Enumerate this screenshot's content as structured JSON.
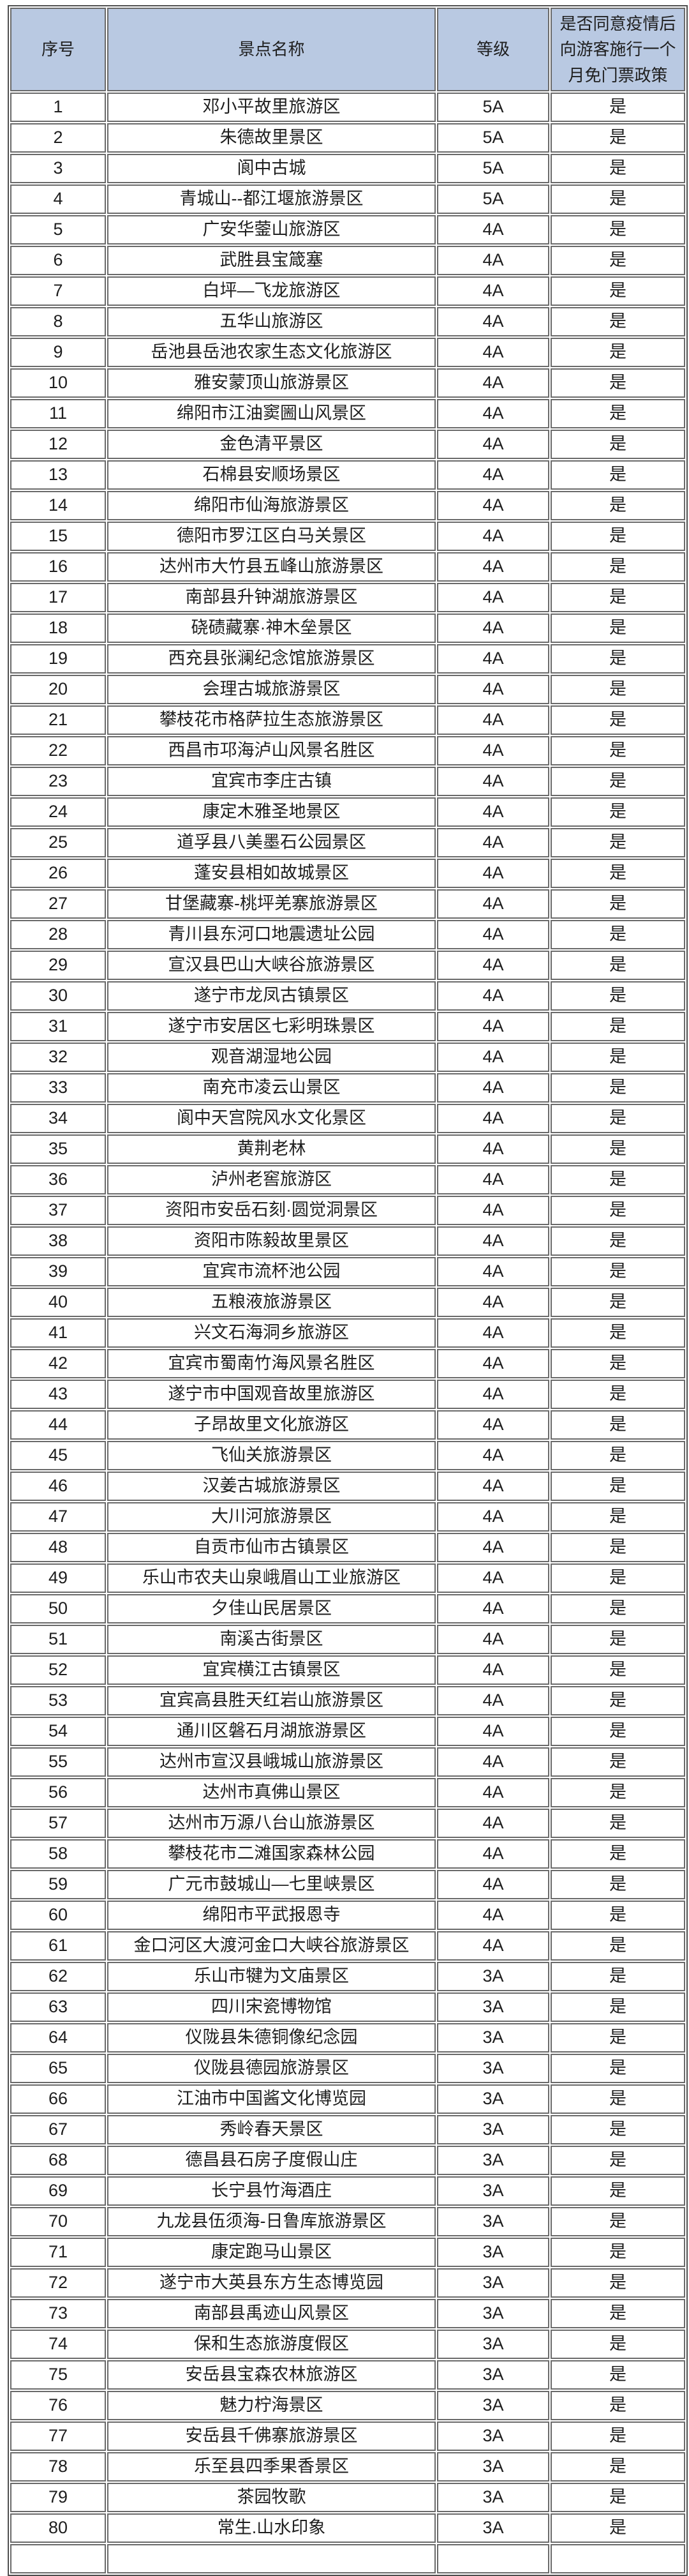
{
  "colors": {
    "header_bg": "#b9c9e2",
    "border": "#6a6a6a",
    "outer_border": "#4f4f4f",
    "text": "#1e1e1e"
  },
  "table": {
    "columns": {
      "serial": "序号",
      "name": "景点名称",
      "grade": "等级",
      "policy": "是否同意疫情后\n向游客施行一个\n月免门票政策"
    },
    "rows": [
      [
        "1",
        "邓小平故里旅游区",
        "5A",
        "是"
      ],
      [
        "2",
        "朱德故里景区",
        "5A",
        "是"
      ],
      [
        "3",
        "阆中古城",
        "5A",
        "是"
      ],
      [
        "4",
        "青城山--都江堰旅游景区",
        "5A",
        "是"
      ],
      [
        "5",
        "广安华蓥山旅游区",
        "4A",
        "是"
      ],
      [
        "6",
        "武胜县宝箴塞",
        "4A",
        "是"
      ],
      [
        "7",
        "白坪—飞龙旅游区",
        "4A",
        "是"
      ],
      [
        "8",
        "五华山旅游区",
        "4A",
        "是"
      ],
      [
        "9",
        "岳池县岳池农家生态文化旅游区",
        "4A",
        "是"
      ],
      [
        "10",
        "雅安蒙顶山旅游景区",
        "4A",
        "是"
      ],
      [
        "11",
        "绵阳市江油窦圌山风景区",
        "4A",
        "是"
      ],
      [
        "12",
        "金色清平景区",
        "4A",
        "是"
      ],
      [
        "13",
        "石棉县安顺场景区",
        "4A",
        "是"
      ],
      [
        "14",
        "绵阳市仙海旅游景区",
        "4A",
        "是"
      ],
      [
        "15",
        "德阳市罗江区白马关景区",
        "4A",
        "是"
      ],
      [
        "16",
        "达州市大竹县五峰山旅游景区",
        "4A",
        "是"
      ],
      [
        "17",
        "南部县升钟湖旅游景区",
        "4A",
        "是"
      ],
      [
        "18",
        "硗碛藏寨·神木垒景区",
        "4A",
        "是"
      ],
      [
        "19",
        "西充县张澜纪念馆旅游景区",
        "4A",
        "是"
      ],
      [
        "20",
        "会理古城旅游景区",
        "4A",
        "是"
      ],
      [
        "21",
        "攀枝花市格萨拉生态旅游景区",
        "4A",
        "是"
      ],
      [
        "22",
        "西昌市邛海泸山风景名胜区",
        "4A",
        "是"
      ],
      [
        "23",
        "宜宾市李庄古镇",
        "4A",
        "是"
      ],
      [
        "24",
        "康定木雅圣地景区",
        "4A",
        "是"
      ],
      [
        "25",
        "道孚县八美墨石公园景区",
        "4A",
        "是"
      ],
      [
        "26",
        "蓬安县相如故城景区",
        "4A",
        "是"
      ],
      [
        "27",
        "甘堡藏寨-桃坪羌寨旅游景区",
        "4A",
        "是"
      ],
      [
        "28",
        "青川县东河口地震遗址公园",
        "4A",
        "是"
      ],
      [
        "29",
        "宣汉县巴山大峡谷旅游景区",
        "4A",
        "是"
      ],
      [
        "30",
        "遂宁市龙凤古镇景区",
        "4A",
        "是"
      ],
      [
        "31",
        "遂宁市安居区七彩明珠景区",
        "4A",
        "是"
      ],
      [
        "32",
        "观音湖湿地公园",
        "4A",
        "是"
      ],
      [
        "33",
        "南充市凌云山景区",
        "4A",
        "是"
      ],
      [
        "34",
        "阆中天宫院风水文化景区",
        "4A",
        "是"
      ],
      [
        "35",
        "黄荆老林",
        "4A",
        "是"
      ],
      [
        "36",
        "泸州老窖旅游区",
        "4A",
        "是"
      ],
      [
        "37",
        "资阳市安岳石刻·圆觉洞景区",
        "4A",
        "是"
      ],
      [
        "38",
        "资阳市陈毅故里景区",
        "4A",
        "是"
      ],
      [
        "39",
        "宜宾市流杯池公园",
        "4A",
        "是"
      ],
      [
        "40",
        "五粮液旅游景区",
        "4A",
        "是"
      ],
      [
        "41",
        "兴文石海洞乡旅游区",
        "4A",
        "是"
      ],
      [
        "42",
        "宜宾市蜀南竹海风景名胜区",
        "4A",
        "是"
      ],
      [
        "43",
        "遂宁市中国观音故里旅游区",
        "4A",
        "是"
      ],
      [
        "44",
        "子昂故里文化旅游区",
        "4A",
        "是"
      ],
      [
        "45",
        "飞仙关旅游景区",
        "4A",
        "是"
      ],
      [
        "46",
        "汉姜古城旅游景区",
        "4A",
        "是"
      ],
      [
        "47",
        "大川河旅游景区",
        "4A",
        "是"
      ],
      [
        "48",
        "自贡市仙市古镇景区",
        "4A",
        "是"
      ],
      [
        "49",
        "乐山市农夫山泉峨眉山工业旅游区",
        "4A",
        "是"
      ],
      [
        "50",
        "夕佳山民居景区",
        "4A",
        "是"
      ],
      [
        "51",
        "南溪古街景区",
        "4A",
        "是"
      ],
      [
        "52",
        "宜宾横江古镇景区",
        "4A",
        "是"
      ],
      [
        "53",
        "宜宾高县胜天红岩山旅游景区",
        "4A",
        "是"
      ],
      [
        "54",
        "通川区磐石月湖旅游景区",
        "4A",
        "是"
      ],
      [
        "55",
        "达州市宣汉县峨城山旅游景区",
        "4A",
        "是"
      ],
      [
        "56",
        "达州市真佛山景区",
        "4A",
        "是"
      ],
      [
        "57",
        "达州市万源八台山旅游景区",
        "4A",
        "是"
      ],
      [
        "58",
        "攀枝花市二滩国家森林公园",
        "4A",
        "是"
      ],
      [
        "59",
        "广元市鼓城山—七里峡景区",
        "4A",
        "是"
      ],
      [
        "60",
        "绵阳市平武报恩寺",
        "4A",
        "是"
      ],
      [
        "61",
        "金口河区大渡河金口大峡谷旅游景区",
        "4A",
        "是"
      ],
      [
        "62",
        "乐山市犍为文庙景区",
        "3A",
        "是"
      ],
      [
        "63",
        "四川宋瓷博物馆",
        "3A",
        "是"
      ],
      [
        "64",
        "仪陇县朱德铜像纪念园",
        "3A",
        "是"
      ],
      [
        "65",
        "仪陇县德园旅游景区",
        "3A",
        "是"
      ],
      [
        "66",
        "江油市中国酱文化博览园",
        "3A",
        "是"
      ],
      [
        "67",
        "秀岭春天景区",
        "3A",
        "是"
      ],
      [
        "68",
        "德昌县石房子度假山庄",
        "3A",
        "是"
      ],
      [
        "69",
        "长宁县竹海酒庄",
        "3A",
        "是"
      ],
      [
        "70",
        "九龙县伍须海-日鲁库旅游景区",
        "3A",
        "是"
      ],
      [
        "71",
        "康定跑马山景区",
        "3A",
        "是"
      ],
      [
        "72",
        "遂宁市大英县东方生态博览园",
        "3A",
        "是"
      ],
      [
        "73",
        "南部县禹迹山风景区",
        "3A",
        "是"
      ],
      [
        "74",
        "保和生态旅游度假区",
        "3A",
        "是"
      ],
      [
        "75",
        "安岳县宝森农林旅游区",
        "3A",
        "是"
      ],
      [
        "76",
        "魅力柠海景区",
        "3A",
        "是"
      ],
      [
        "77",
        "安岳县千佛寨旅游景区",
        "3A",
        "是"
      ],
      [
        "78",
        "乐至县四季果香景区",
        "3A",
        "是"
      ],
      [
        "79",
        "茶园牧歌",
        "3A",
        "是"
      ],
      [
        "80",
        "常生.山水印象",
        "3A",
        "是"
      ]
    ]
  }
}
